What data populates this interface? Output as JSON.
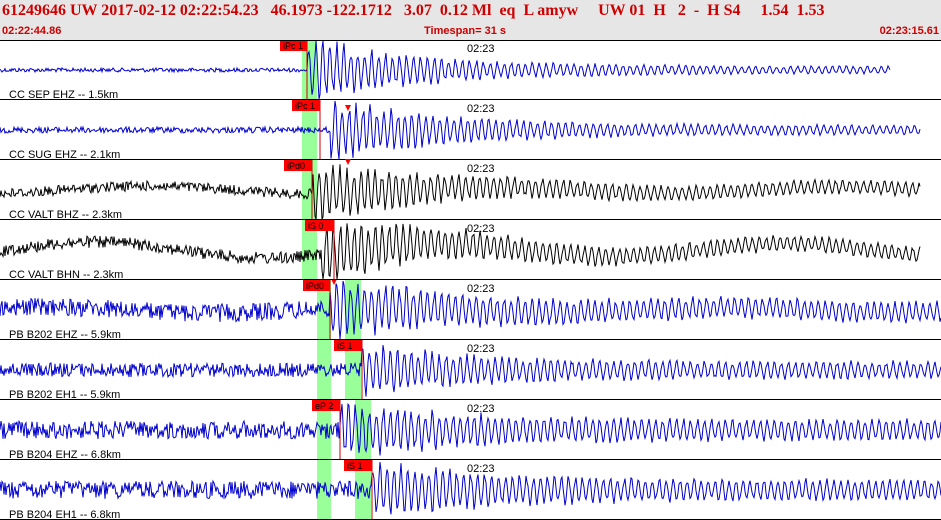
{
  "header": {
    "title": "61249646 UW 2017-02-12 02:22:54.23   46.1973 -122.1712   3.07  0.12 Ml  eq  L amyw     UW 01  H   2  -  H S4     1.54  1.53",
    "start_time": "02:22:44.86",
    "timespan": "Timespan=  31 s",
    "end_time": "02:23:15.61"
  },
  "traces": [
    {
      "label": "CC SEP EHZ -- 1.5km",
      "time_mark": "02:23",
      "pick": "iPc 1",
      "color": "#0000cc"
    },
    {
      "label": "CC SUG EHZ -- 2.1km",
      "time_mark": "02:23",
      "pick": "iPc 1",
      "color": "#0000cc"
    },
    {
      "label": "CC VALT BHZ -- 2.3km",
      "time_mark": "02:23",
      "pick": "iPd0",
      "color": "#000000"
    },
    {
      "label": "CC VALT BHN -- 2.3km",
      "time_mark": "02:23",
      "pick": "iS 0",
      "color": "#000000"
    },
    {
      "label": "PB B202 EHZ -- 5.9km",
      "time_mark": "02:23",
      "pick": "iPd0",
      "color": "#0000cc"
    },
    {
      "label": "PB B202 EH1 -- 5.9km",
      "time_mark": "02:23",
      "pick": "iS 1",
      "color": "#0000cc"
    },
    {
      "label": "PB B204 EHZ -- 6.8km",
      "time_mark": "02:23",
      "pick": "eP 2",
      "color": "#0000cc"
    },
    {
      "label": "PB B204 EH1 -- 6.8km",
      "time_mark": "02:23",
      "pick": "iS 1",
      "color": "#0000cc"
    }
  ],
  "colors": {
    "header_text": "#cc0000",
    "pick_box": "#ff0000",
    "window": "#99ff99",
    "header_bg": "#e6e6e6"
  }
}
